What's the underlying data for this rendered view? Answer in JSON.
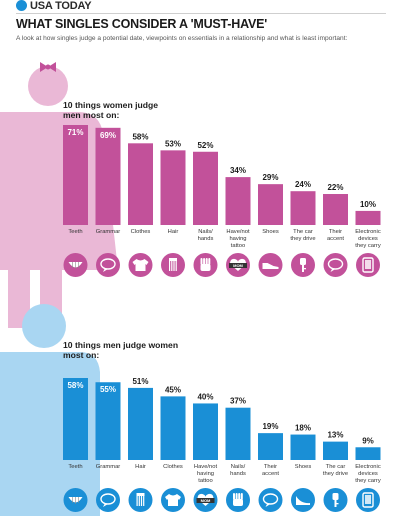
{
  "header": {
    "brand": "USA TODAY",
    "title": "WHAT SINGLES CONSIDER A 'MUST-HAVE'",
    "subtitle": "A look at how singles judge a potential date, viewpoints on essentials in a relationship and what is least important:"
  },
  "colors": {
    "women": "#c2519a",
    "women_figure": "#eab8d6",
    "men": "#1a8fd6",
    "men_figure": "#a9d6f2",
    "bow": "#c2519a"
  },
  "chart_data": [
    {
      "type": "bar",
      "title": "10 things women judge men most on:",
      "categories": [
        "Teeth",
        "Grammar",
        "Clothes",
        "Hair",
        "Nails/ hands",
        "Have/not having tattoo",
        "Shoes",
        "The car they drive",
        "Their accent",
        "Electronic devices they carry"
      ],
      "values": [
        71,
        69,
        58,
        53,
        52,
        34,
        29,
        24,
        22,
        10
      ],
      "value_labels": [
        "71%",
        "69%",
        "58%",
        "53%",
        "52%",
        "34%",
        "29%",
        "24%",
        "22%",
        "10%"
      ],
      "icons": [
        "teeth-icon",
        "speech-bubble-icon",
        "shirt-icon",
        "comb-icon",
        "hand-icon",
        "mom-tattoo-icon",
        "shoe-icon",
        "car-key-icon",
        "speech-bubble-icon",
        "phone-icon"
      ],
      "ylim": [
        0,
        75
      ]
    },
    {
      "type": "bar",
      "title": "10 things men judge women most on:",
      "categories": [
        "Teeth",
        "Grammar",
        "Hair",
        "Clothes",
        "Have/not having tattoo",
        "Nails/ hands",
        "Their accent",
        "Shoes",
        "The car they drive",
        "Electronic devices they carry"
      ],
      "values": [
        58,
        55,
        51,
        45,
        40,
        37,
        19,
        18,
        13,
        9
      ],
      "value_labels": [
        "58%",
        "55%",
        "51%",
        "45%",
        "40%",
        "37%",
        "19%",
        "18%",
        "13%",
        "9%"
      ],
      "icons": [
        "teeth-icon",
        "speech-bubble-icon",
        "comb-icon",
        "shirt-icon",
        "mom-tattoo-icon",
        "hand-icon",
        "speech-bubble-icon",
        "high-heel-icon",
        "car-key-icon",
        "phone-icon"
      ],
      "ylim": [
        0,
        75
      ]
    }
  ]
}
